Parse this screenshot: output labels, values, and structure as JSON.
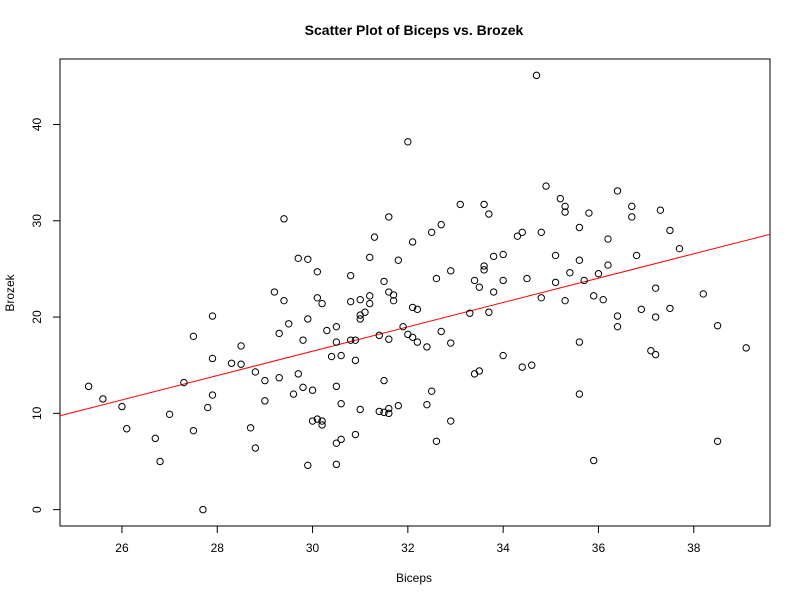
{
  "chart_data": {
    "type": "scatter",
    "title": "Scatter Plot of Biceps vs. Brozek",
    "xlabel": "Biceps",
    "ylabel": "Brozek",
    "xlim": [
      24.7,
      39.6
    ],
    "ylim": [
      -1.7,
      46.8
    ],
    "xticks": [
      26,
      28,
      30,
      32,
      34,
      36,
      38
    ],
    "yticks": [
      0,
      10,
      20,
      30,
      40
    ],
    "grid": false,
    "legend": "none",
    "fit_line": {
      "color": "#ff0000",
      "intercept": -21.5,
      "slope": 1.265
    },
    "points": {
      "x": [
        25.3,
        25.6,
        26.0,
        26.1,
        26.7,
        26.8,
        27.0,
        27.3,
        27.5,
        27.5,
        27.7,
        27.8,
        27.9,
        27.9,
        27.9,
        28.3,
        28.5,
        28.5,
        28.7,
        28.8,
        28.8,
        29.0,
        29.0,
        29.2,
        29.3,
        29.3,
        29.4,
        29.4,
        29.5,
        29.6,
        29.7,
        29.7,
        29.8,
        29.8,
        29.9,
        29.9,
        29.9,
        30.0,
        30.0,
        30.1,
        30.1,
        30.1,
        30.2,
        30.2,
        30.2,
        30.3,
        30.4,
        30.5,
        30.5,
        30.5,
        30.5,
        30.5,
        30.6,
        30.6,
        30.6,
        30.8,
        30.8,
        30.8,
        30.9,
        30.9,
        30.9,
        31.0,
        31.0,
        31.0,
        31.0,
        31.1,
        31.2,
        31.2,
        31.2,
        31.3,
        31.4,
        31.4,
        31.5,
        31.5,
        31.5,
        31.6,
        31.6,
        31.6,
        31.6,
        31.6,
        31.7,
        31.7,
        31.8,
        31.8,
        31.9,
        32.0,
        32.0,
        32.1,
        32.1,
        32.1,
        32.2,
        32.2,
        32.4,
        32.4,
        32.5,
        32.5,
        32.6,
        32.6,
        32.7,
        32.7,
        32.9,
        32.9,
        32.9,
        33.1,
        33.3,
        33.4,
        33.4,
        33.5,
        33.5,
        33.6,
        33.6,
        33.6,
        33.7,
        33.7,
        33.8,
        33.8,
        34.0,
        34.0,
        34.0,
        34.3,
        34.4,
        34.4,
        34.5,
        34.6,
        34.7,
        34.8,
        34.8,
        34.9,
        35.1,
        35.1,
        35.2,
        35.3,
        35.3,
        35.3,
        35.4,
        35.6,
        35.6,
        35.6,
        35.6,
        35.7,
        35.8,
        35.9,
        35.9,
        36.0,
        36.1,
        36.2,
        36.2,
        36.4,
        36.4,
        36.4,
        36.7,
        36.7,
        36.8,
        36.9,
        37.1,
        37.2,
        37.2,
        37.2,
        37.3,
        37.5,
        37.5,
        37.7,
        38.2,
        38.5,
        38.5,
        39.1
      ],
      "y": [
        12.8,
        11.5,
        10.7,
        8.4,
        7.4,
        5.0,
        9.9,
        13.2,
        8.2,
        18.0,
        0.0,
        10.6,
        20.1,
        15.7,
        11.9,
        15.2,
        17.0,
        15.1,
        8.5,
        14.3,
        6.4,
        13.4,
        11.3,
        22.6,
        18.3,
        13.7,
        30.2,
        21.7,
        19.3,
        12.0,
        26.1,
        14.1,
        17.6,
        12.7,
        26.0,
        19.8,
        4.6,
        12.4,
        9.2,
        24.7,
        22.0,
        9.4,
        21.4,
        9.2,
        8.8,
        18.6,
        15.9,
        19.0,
        17.4,
        12.8,
        6.9,
        4.7,
        16.0,
        11.0,
        7.3,
        24.3,
        21.6,
        17.6,
        15.5,
        17.6,
        7.8,
        21.8,
        20.2,
        19.8,
        10.4,
        20.5,
        22.2,
        21.4,
        26.2,
        28.3,
        18.1,
        10.2,
        13.4,
        10.1,
        23.7,
        30.4,
        22.6,
        17.7,
        10.5,
        10.0,
        22.3,
        21.7,
        25.9,
        10.8,
        19.0,
        38.2,
        18.2,
        27.8,
        21.0,
        17.9,
        20.8,
        17.4,
        16.9,
        10.9,
        28.8,
        12.3,
        24.0,
        7.1,
        29.6,
        18.5,
        24.8,
        17.3,
        9.2,
        31.7,
        20.4,
        23.8,
        14.1,
        23.1,
        14.4,
        31.7,
        25.3,
        24.9,
        30.7,
        20.5,
        26.3,
        22.6,
        26.5,
        23.8,
        16.0,
        28.4,
        28.8,
        14.8,
        24.0,
        15.0,
        45.1,
        28.8,
        22.0,
        33.6,
        26.4,
        23.6,
        32.3,
        31.5,
        30.9,
        21.7,
        24.6,
        29.3,
        25.9,
        17.4,
        12.0,
        23.8,
        30.8,
        22.2,
        5.1,
        24.5,
        21.8,
        28.1,
        25.4,
        33.1,
        20.1,
        19.0,
        31.5,
        30.4,
        26.4,
        20.8,
        16.5,
        23.0,
        20.0,
        16.1,
        31.1,
        29.0,
        20.9,
        27.1,
        22.4,
        19.1,
        7.1,
        16.8
      ]
    }
  }
}
